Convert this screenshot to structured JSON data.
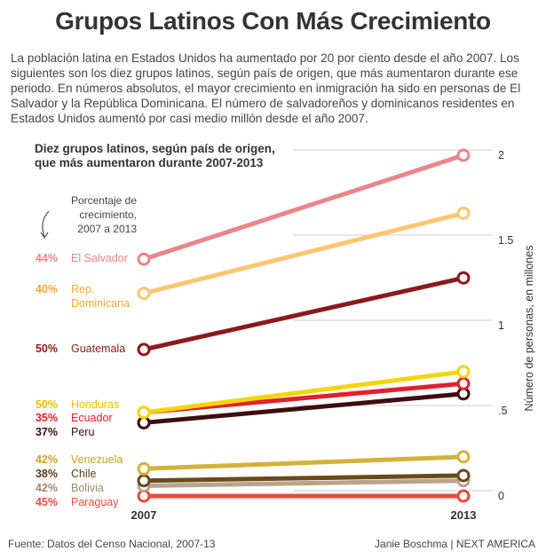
{
  "header": {
    "title": "Grupos Latinos Con Más Crecimiento",
    "intro": "La población latina en Estados Unidos ha aumentado por 20 por ciento desde el año 2007. Los siguientes son los diez grupos latinos, según país de origen, que más aumentaron durante ese periodo. En números absolutos, el mayor crecimiento en inmigración ha sido en personas de El Salvador y la República Dominicana. El número de salvadoreños y dominicanos residentes en Estados Unidos aumentó por casi medio millón desde el año 2007."
  },
  "chart": {
    "subtitle": "Diez grupos latinos, según país de origen, que más aumentaron durante 2007-2013",
    "pct_note": "Porcentaje de crecimiento, 2007 a 2013",
    "ylabel": "Número de personas, en millones"
  },
  "footer": {
    "source": "Fuente: Datos del Censo Nacional, 2007-13",
    "credit": "Janie Boschma | NEXT AMERICA"
  },
  "chart_data": {
    "type": "line",
    "title": "Diez grupos latinos, según país de origen, que más aumentaron durante 2007-2013",
    "xlabel": "",
    "ylabel": "Número de personas, en millones",
    "x": [
      "2007",
      "2013"
    ],
    "ylim": [
      0,
      2
    ],
    "yticks": [
      {
        "value": 0,
        "label": "0"
      },
      {
        "value": 0.5,
        "label": ".5"
      },
      {
        "value": 1,
        "label": "1"
      },
      {
        "value": 1.5,
        "label": "1.5"
      },
      {
        "value": 2,
        "label": "2"
      }
    ],
    "grid": true,
    "series": [
      {
        "name": "El Salvador",
        "label_lines": [
          "El Salvador"
        ],
        "pct": "44%",
        "values": [
          1.39,
          2.0
        ],
        "color": "#e8868a",
        "label_color": "#e8868a"
      },
      {
        "name": "Rep. Dominicana",
        "label_lines": [
          "Rep.",
          "Dominicana"
        ],
        "pct": "40%",
        "values": [
          1.19,
          1.66
        ],
        "color": "#fcc56f",
        "label_color": "#f0a830"
      },
      {
        "name": "Guatemala",
        "label_lines": [
          "Guatemala"
        ],
        "pct": "50%",
        "values": [
          0.86,
          1.28
        ],
        "color": "#8b1a1f",
        "label_color": "#8b1a1f"
      },
      {
        "name": "Honduras",
        "label_lines": [
          "Honduras"
        ],
        "pct": "50%",
        "values": [
          0.49,
          0.73
        ],
        "color": "#f5d50a",
        "label_color": "#e8c200"
      },
      {
        "name": "Ecuador",
        "label_lines": [
          "Ecuador"
        ],
        "pct": "35%",
        "values": [
          0.49,
          0.66
        ],
        "color": "#e3202b",
        "label_color": "#e3202b"
      },
      {
        "name": "Peru",
        "label_lines": [
          "Peru"
        ],
        "pct": "37%",
        "values": [
          0.43,
          0.6
        ],
        "color": "#3d0d0d",
        "label_color": "#3d0d0d"
      },
      {
        "name": "Venezuela",
        "label_lines": [
          "Venezuela"
        ],
        "pct": "42%",
        "values": [
          0.16,
          0.23
        ],
        "color": "#d4b23a",
        "label_color": "#c9a420"
      },
      {
        "name": "Chile",
        "label_lines": [
          "Chile"
        ],
        "pct": "38%",
        "values": [
          0.09,
          0.12
        ],
        "color": "#6a4a1a",
        "label_color": "#5a3c12"
      },
      {
        "name": "Bolivia",
        "label_lines": [
          "Bolivia"
        ],
        "pct": "42%",
        "values": [
          0.06,
          0.09
        ],
        "color": "#b8a48a",
        "label_color": "#a08a6a"
      },
      {
        "name": "Paraguay",
        "label_lines": [
          "Paraguay"
        ],
        "pct": "45%",
        "values": [
          0.0,
          0.0
        ],
        "color": "#e84a3a",
        "label_color": "#e84a3a"
      }
    ]
  }
}
